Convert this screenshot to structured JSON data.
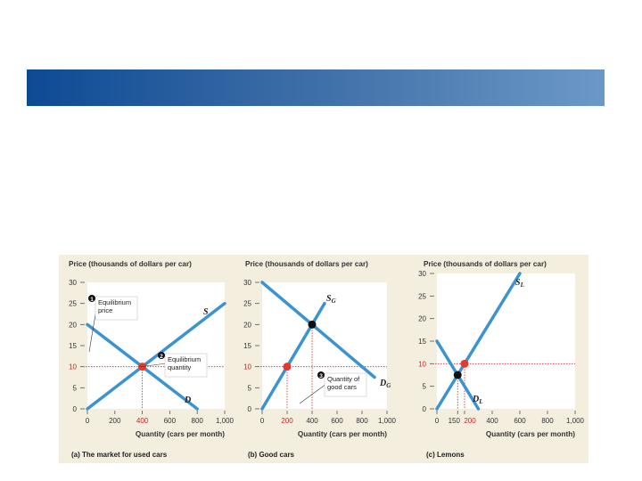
{
  "slide": {
    "banner_color": "#2f62a2"
  },
  "colors": {
    "curve": "#3b93d2",
    "red_point": "#e5392f",
    "black_point": "#111111",
    "plot_bg": "#ffffff",
    "panel_bg": "#f3eedd"
  },
  "chart_data": [
    {
      "type": "line",
      "title": "Price (thousands of dollars per car)",
      "xlabel": "Quantity (cars per month)",
      "caption_prefix": "(a)",
      "caption_text": "The market for used cars",
      "xlim": [
        0,
        1000
      ],
      "ylim": [
        0,
        30
      ],
      "xticks": [
        "0",
        "200",
        "400",
        "600",
        "800",
        "1,000"
      ],
      "xtick_values": [
        0,
        200,
        400,
        600,
        800,
        1000
      ],
      "highlight_xtick": "400",
      "yticks": [
        "0",
        "5",
        "10",
        "15",
        "20",
        "25",
        "30"
      ],
      "ytick_values": [
        0,
        5,
        10,
        15,
        20,
        25,
        30
      ],
      "highlight_ytick": "10",
      "series": [
        {
          "name": "S",
          "sub": "",
          "points": [
            [
              0,
              0
            ],
            [
              1000,
              25
            ]
          ]
        },
        {
          "name": "D",
          "sub": "",
          "points": [
            [
              0,
              20
            ],
            [
              800,
              0
            ]
          ]
        }
      ],
      "equilibrium": {
        "x": 400,
        "y": 10,
        "color": "red"
      },
      "annotations": [
        {
          "num": "1",
          "lines": [
            "Equilibrium",
            "price"
          ]
        },
        {
          "num": "2",
          "lines": [
            "Equilibrium",
            "quantity"
          ]
        }
      ]
    },
    {
      "type": "line",
      "title": "Price (thousands of dollars per car)",
      "xlabel": "Quantity (cars per month)",
      "caption_prefix": "(b)",
      "caption_text": "Good cars",
      "xlim": [
        0,
        1000
      ],
      "ylim": [
        0,
        30
      ],
      "xticks": [
        "0",
        "200",
        "400",
        "600",
        "800",
        "1,000"
      ],
      "xtick_values": [
        0,
        200,
        400,
        600,
        800,
        1000
      ],
      "highlight_xtick": "200",
      "yticks": [
        "0",
        "5",
        "10",
        "15",
        "20",
        "25",
        "30"
      ],
      "ytick_values": [
        0,
        5,
        10,
        15,
        20,
        25,
        30
      ],
      "highlight_ytick": "10",
      "series": [
        {
          "name": "S",
          "sub": "G",
          "points": [
            [
              0,
              0
            ],
            [
              500,
              25
            ]
          ]
        },
        {
          "name": "D",
          "sub": "G",
          "points": [
            [
              0,
              30
            ],
            [
              900,
              7.5
            ]
          ]
        }
      ],
      "equilibrium": {
        "x": 400,
        "y": 20,
        "color": "black"
      },
      "extra_point": {
        "x": 200,
        "y": 10,
        "color": "red"
      },
      "annotations": [
        {
          "num": "3",
          "lines": [
            "Quantity of",
            "good cars"
          ]
        }
      ]
    },
    {
      "type": "line",
      "title": "Price (thousands of dollars per car)",
      "xlabel": "Quantity (cars per month)",
      "caption_prefix": "(c)",
      "caption_text": "Lemons",
      "xlim": [
        0,
        1000
      ],
      "ylim": [
        0,
        30
      ],
      "xticks": [
        "0",
        "150",
        "200",
        "400",
        "600",
        "800",
        "1,000"
      ],
      "xtick_values": [
        0,
        150,
        200,
        400,
        600,
        800,
        1000
      ],
      "highlight_xtick": "200",
      "yticks": [
        "0",
        "5",
        "10",
        "15",
        "20",
        "25",
        "30"
      ],
      "ytick_values": [
        0,
        5,
        10,
        15,
        20,
        25,
        30
      ],
      "highlight_ytick": "10",
      "series": [
        {
          "name": "S",
          "sub": "L",
          "points": [
            [
              0,
              0
            ],
            [
              600,
              30
            ]
          ]
        },
        {
          "name": "D",
          "sub": "L",
          "points": [
            [
              0,
              15
            ],
            [
              300,
              0
            ]
          ]
        }
      ],
      "equilibrium": {
        "x": 150,
        "y": 7.5,
        "color": "black"
      },
      "extra_point": {
        "x": 200,
        "y": 10,
        "color": "red"
      },
      "annotations": []
    }
  ]
}
